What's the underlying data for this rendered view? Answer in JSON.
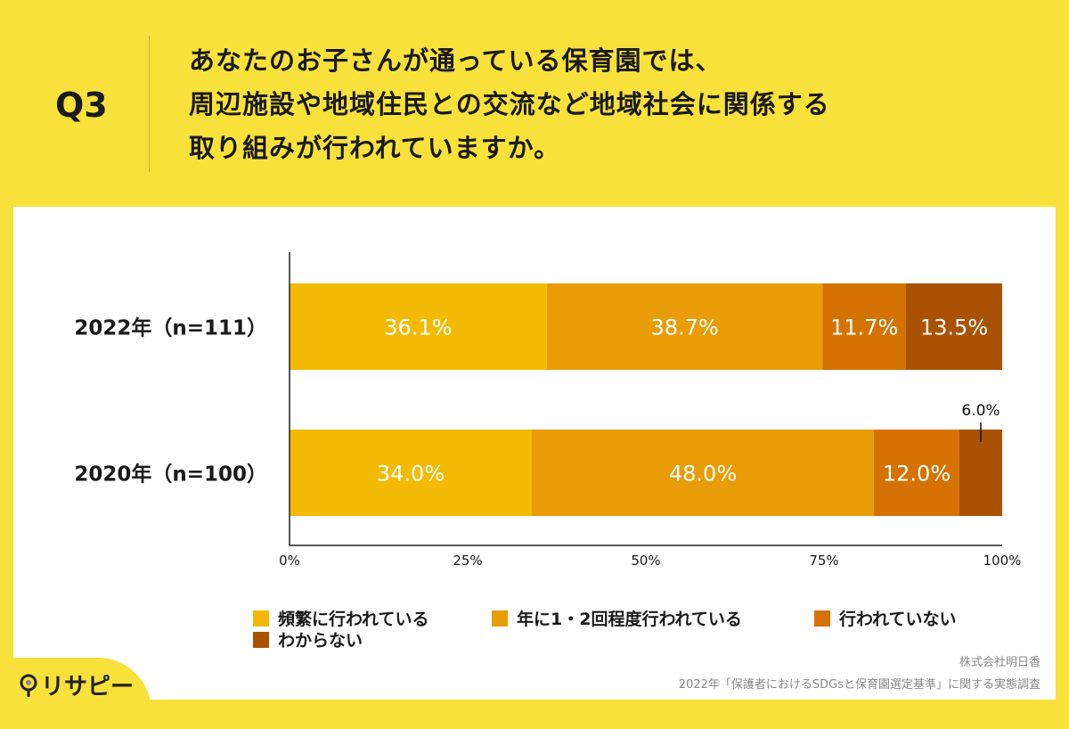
{
  "header": {
    "question": "Q3",
    "title_lines": [
      "あなたのお子さんが通っている保育園では、",
      "周辺施設や地域住民との交流など地域社会に関係する",
      "取り組みが行われていますか。"
    ]
  },
  "chart_data": {
    "type": "bar",
    "orientation": "horizontal",
    "stacked": true,
    "categories": [
      "2022年（n=111）",
      "2020年（n=100）"
    ],
    "series": [
      {
        "name": "頻繁に行われている",
        "values": [
          36.1,
          34.0
        ],
        "labels": [
          "36.1%",
          "34.0%"
        ],
        "color": "#F2BA05"
      },
      {
        "name": "年に1・2回程度行われている",
        "values": [
          38.7,
          48.0
        ],
        "labels": [
          "38.7%",
          "48.0%"
        ],
        "color": "#E89C07"
      },
      {
        "name": "行われていない",
        "values": [
          11.7,
          12.0
        ],
        "labels": [
          "11.7%",
          "12.0%"
        ],
        "color": "#D47303"
      },
      {
        "name": "わからない",
        "values": [
          13.5,
          6.0
        ],
        "labels": [
          "13.5%",
          "6.0%"
        ],
        "color": "#AA5203"
      }
    ],
    "xlim": [
      0,
      100
    ],
    "xticks": [
      "0%",
      "25%",
      "50%",
      "75%",
      "100%"
    ],
    "legend_position": "bottom",
    "grid": false
  },
  "footer": {
    "source_company": "株式会社明日香",
    "source_survey": "2022年「保護者におけるSDGsと保育園選定基準」に関する実態調査",
    "logo": "リサピー"
  }
}
